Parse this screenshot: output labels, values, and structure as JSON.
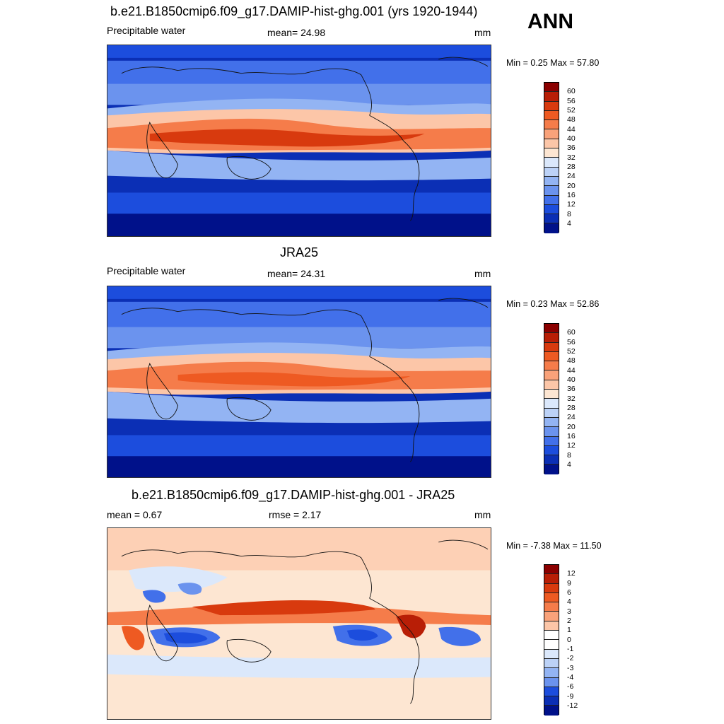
{
  "anno_label": "ANN",
  "panels": [
    {
      "title": "b.e21.B1850cmip6.f09_g17.DAMIP-hist-ghg.001 (yrs 1920-1944)",
      "left_label": "Precipitable water",
      "center_label": "mean=  24.98",
      "units": "mm",
      "minmax": "Min =   0.25 Max =  57.80",
      "colorbar_ticks": [
        "60",
        "56",
        "52",
        "48",
        "44",
        "40",
        "36",
        "32",
        "28",
        "24",
        "20",
        "16",
        "12",
        "8",
        "4"
      ]
    },
    {
      "title": "JRA25",
      "left_label": "Precipitable water",
      "center_label": "mean=  24.31",
      "units": "mm",
      "minmax": "Min =   0.23 Max =  52.86",
      "colorbar_ticks": [
        "60",
        "56",
        "52",
        "48",
        "44",
        "40",
        "36",
        "32",
        "28",
        "24",
        "20",
        "16",
        "12",
        "8",
        "4"
      ]
    },
    {
      "title": "b.e21.B1850cmip6.f09_g17.DAMIP-hist-ghg.001 - JRA25",
      "left_label": "mean =   0.67",
      "center_label": "rmse =   2.17",
      "units": "mm",
      "minmax": "Min =  -7.38 Max =  11.50",
      "colorbar_ticks": [
        "12",
        "9",
        "6",
        "4",
        "3",
        "2",
        "1",
        "0",
        "-1",
        "-2",
        "-3",
        "-4",
        "-6",
        "-9",
        "-12"
      ]
    }
  ],
  "colors": {
    "abs_scale": [
      "#8b0000",
      "#b81e06",
      "#d83a0e",
      "#ee5a22",
      "#f57c4a",
      "#f9a27a",
      "#fcc6a8",
      "#fde6d2",
      "#dbe8fb",
      "#bcd2f7",
      "#93b4f3",
      "#6b93ee",
      "#4270ea",
      "#1c4ddd",
      "#0b2fb5",
      "#00118a"
    ],
    "diff_scale": [
      "#8b0000",
      "#b81e06",
      "#d83a0e",
      "#ee5a22",
      "#f57c4a",
      "#f9a27a",
      "#fcc6a8",
      "#ffffff",
      "#ffffff",
      "#dbe8fb",
      "#bcd2f7",
      "#93b4f3",
      "#6b93ee",
      "#1c4ddd",
      "#0b2fb5",
      "#00118a"
    ]
  }
}
